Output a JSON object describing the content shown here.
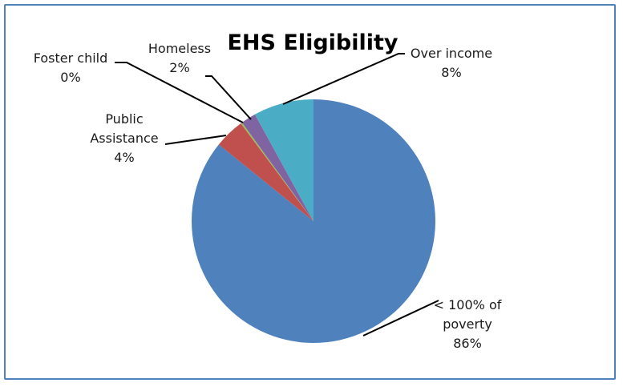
{
  "chart_data": {
    "type": "pie",
    "title": "EHS Eligibility",
    "start_angle_deg": 0,
    "direction": "clockwise",
    "slices": [
      {
        "label": "< 100% of poverty",
        "lines": [
          "< 100% of",
          "poverty"
        ],
        "value": 86,
        "value_label": "86%",
        "color": "#4f81bd"
      },
      {
        "label": "Public Assistance",
        "lines": [
          "Public",
          "Assistance"
        ],
        "value": 4,
        "value_label": "4%",
        "color": "#c0504d"
      },
      {
        "label": "Foster child",
        "lines": [
          "Foster child"
        ],
        "value": 0.2,
        "value_label": "0%",
        "color": "#9bbb59"
      },
      {
        "label": "Homeless",
        "lines": [
          "Homeless"
        ],
        "value": 2,
        "value_label": "2%",
        "color": "#8064a2"
      },
      {
        "label": "Over income",
        "lines": [
          "Over income"
        ],
        "value": 8,
        "value_label": "8%",
        "color": "#4bacc6"
      }
    ]
  }
}
